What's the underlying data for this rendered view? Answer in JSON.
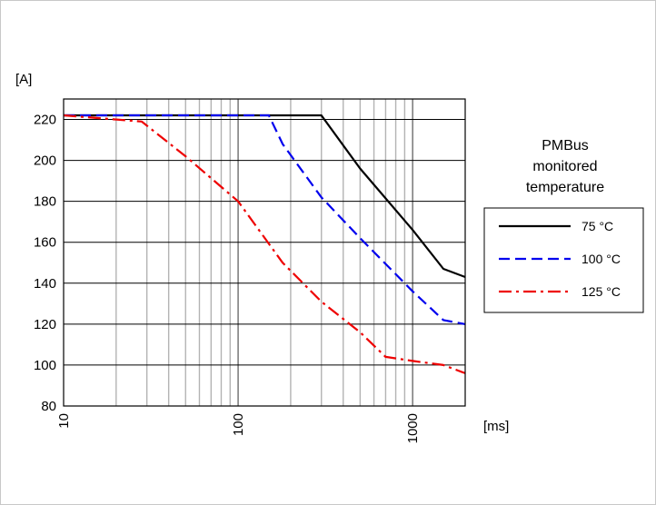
{
  "chart_data": {
    "type": "line",
    "xscale": "log",
    "xlim": [
      10,
      2000
    ],
    "ylim": [
      80,
      230
    ],
    "xlabel": "[ms]",
    "ylabel": "[A]",
    "x_ticks": [
      "10",
      "100",
      "1000"
    ],
    "y_ticks": [
      80,
      100,
      120,
      140,
      160,
      180,
      200,
      220
    ],
    "grid": true,
    "legend": {
      "title": [
        "PMBus",
        "monitored",
        "temperature"
      ],
      "placement": "right"
    },
    "series": [
      {
        "name": "75 °C",
        "color": "#000000",
        "style": "solid",
        "points": [
          [
            10,
            222
          ],
          [
            300,
            222
          ],
          [
            500,
            196
          ],
          [
            1000,
            166
          ],
          [
            1500,
            147
          ],
          [
            2000,
            143
          ]
        ]
      },
      {
        "name": "100 °C",
        "color": "#0000ee",
        "style": "dashed",
        "points": [
          [
            10,
            222
          ],
          [
            150,
            222
          ],
          [
            180,
            208
          ],
          [
            300,
            182
          ],
          [
            500,
            162
          ],
          [
            1000,
            136
          ],
          [
            1500,
            122
          ],
          [
            2000,
            120
          ]
        ]
      },
      {
        "name": "125 °C",
        "color": "#ee0000",
        "style": "dashdot",
        "points": [
          [
            10,
            222
          ],
          [
            28,
            219
          ],
          [
            50,
            202
          ],
          [
            100,
            180
          ],
          [
            180,
            150
          ],
          [
            300,
            131
          ],
          [
            500,
            116
          ],
          [
            700,
            104
          ],
          [
            1000,
            102
          ],
          [
            1500,
            100
          ],
          [
            2000,
            96
          ]
        ]
      }
    ]
  }
}
